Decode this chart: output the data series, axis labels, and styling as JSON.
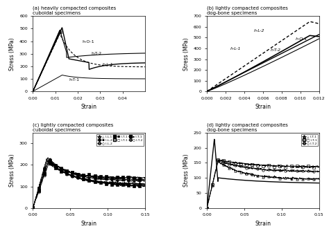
{
  "panels": [
    {
      "label": "(a) heavily compacted composites\ncuboidal specimens",
      "xlabel": "Strain",
      "ylabel": "Stress (MPa)",
      "xlim": [
        0,
        0.05
      ],
      "ylim": [
        0,
        600
      ],
      "xticks": [
        0,
        0.01,
        0.02,
        0.03,
        0.04
      ],
      "yticks": [
        0,
        100,
        200,
        300,
        400,
        500,
        600
      ]
    },
    {
      "label": "(b) lightly compacted composites\ndog-bone specimens",
      "xlabel": "Strain",
      "ylabel": "Stress (MPa)",
      "xlim": [
        0,
        0.012
      ],
      "ylim": [
        0,
        700
      ],
      "xticks": [
        0,
        0.002,
        0.004,
        0.006,
        0.008,
        0.01,
        0.012
      ],
      "yticks": [
        0,
        100,
        200,
        300,
        400,
        500,
        600,
        700
      ]
    },
    {
      "label": "(c) lightly compacted composites\ncuboidal specimens",
      "xlabel": "Strain",
      "ylabel": "Stress (MPa)",
      "xlim": [
        0,
        0.15
      ],
      "ylim": [
        0,
        350
      ],
      "xticks": [
        0,
        0.05,
        0.1,
        0.15
      ],
      "yticks": [
        0,
        100,
        200,
        300
      ]
    },
    {
      "label": "(d) lightly compacted composites\ndog-bone specimens",
      "xlabel": "Strain",
      "ylabel": "Stress (MPa)",
      "xlim": [
        0,
        0.15
      ],
      "ylim": [
        0,
        250
      ],
      "xticks": [
        0,
        0.05,
        0.1,
        0.15
      ],
      "yticks": [
        0,
        50,
        100,
        150,
        200,
        250
      ]
    }
  ]
}
